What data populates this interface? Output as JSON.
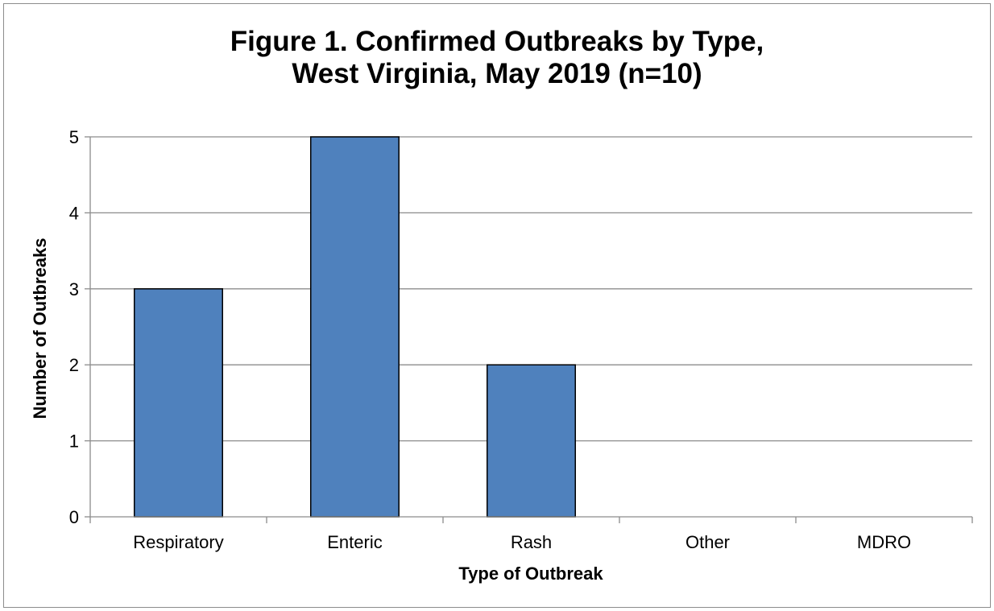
{
  "chart_data": {
    "type": "bar",
    "title": "Figure 1. Confirmed Outbreaks by Type,",
    "subtitle": "West Virginia, May 2019 (n=10)",
    "xlabel": "Type of Outbreak",
    "ylabel": "Number of Outbreaks",
    "categories": [
      "Respiratory",
      "Enteric",
      "Rash",
      "Other",
      "MDRO"
    ],
    "values": [
      3,
      5,
      2,
      0,
      0
    ],
    "ylim": [
      0,
      5
    ],
    "yticks": [
      "0",
      "1",
      "2",
      "3",
      "4",
      "5"
    ],
    "grid": true,
    "legend": "none",
    "bar_color": "#4f81bd"
  }
}
